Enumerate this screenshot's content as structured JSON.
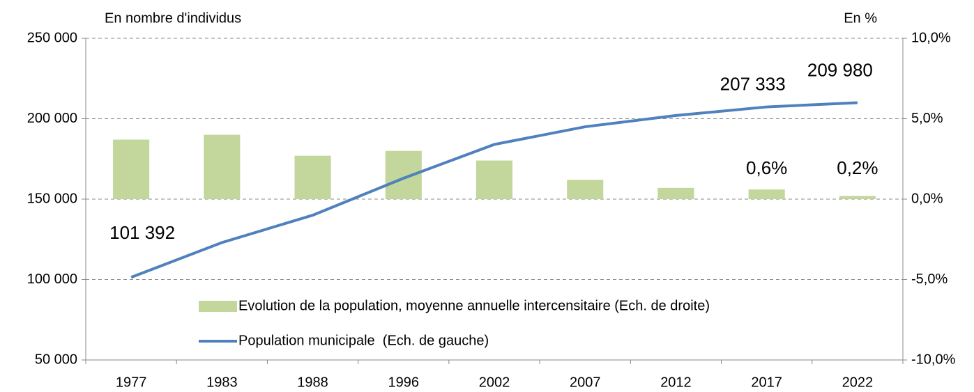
{
  "chart_data": {
    "type": "bar+line",
    "y_axis_title": "En nombre d'individus",
    "y2_axis_title": "En %",
    "categories": [
      "1977",
      "1983",
      "1988",
      "1996",
      "2002",
      "2007",
      "2012",
      "2017",
      "2022"
    ],
    "series": [
      {
        "name": "Evolution de la population, moyenne annuelle intercensitaire (Ech. de droite)",
        "type": "bar",
        "axis": "y2",
        "color": "#c3d69b",
        "values": [
          3.7,
          4.0,
          2.7,
          3.0,
          2.4,
          1.2,
          0.7,
          0.6,
          0.2
        ],
        "value_labels": [
          null,
          null,
          null,
          null,
          null,
          null,
          null,
          "0,6%",
          "0,2%"
        ]
      },
      {
        "name": "Population municipale  (Ech. de gauche)",
        "type": "line",
        "axis": "y",
        "color": "#4f81bd",
        "values": [
          101392,
          123000,
          140000,
          163000,
          184000,
          195000,
          202000,
          207333,
          209980
        ],
        "value_labels": [
          "101 392",
          null,
          null,
          null,
          null,
          null,
          null,
          "207 333",
          "209 980"
        ]
      }
    ],
    "ylim": [
      50000,
      250000
    ],
    "yticks": [
      {
        "value": 50000,
        "label": "50 000"
      },
      {
        "value": 100000,
        "label": "100 000"
      },
      {
        "value": 150000,
        "label": "150 000"
      },
      {
        "value": 200000,
        "label": "200 000"
      },
      {
        "value": 250000,
        "label": "250 000"
      }
    ],
    "y2lim": [
      -10,
      10
    ],
    "y2ticks": [
      {
        "value": -10,
        "label": "-10,0%"
      },
      {
        "value": -5,
        "label": "-5,0%"
      },
      {
        "value": 0,
        "label": "0,0%"
      },
      {
        "value": 5,
        "label": "5,0%"
      },
      {
        "value": 10,
        "label": "10,0%"
      }
    ],
    "grid": true
  }
}
